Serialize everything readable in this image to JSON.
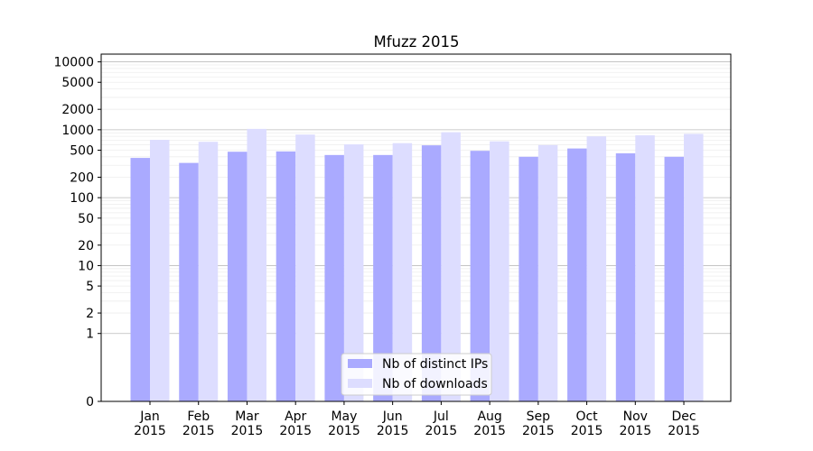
{
  "chart_data": {
    "type": "bar",
    "title": "Mfuzz 2015",
    "xlabel": "",
    "ylabel": "",
    "y_scale": "symlog",
    "ylim": [
      0,
      13000
    ],
    "categories": [
      [
        "Jan",
        "2015"
      ],
      [
        "Feb",
        "2015"
      ],
      [
        "Mar",
        "2015"
      ],
      [
        "Apr",
        "2015"
      ],
      [
        "May",
        "2015"
      ],
      [
        "Jun",
        "2015"
      ],
      [
        "Jul",
        "2015"
      ],
      [
        "Aug",
        "2015"
      ],
      [
        "Sep",
        "2015"
      ],
      [
        "Oct",
        "2015"
      ],
      [
        "Nov",
        "2015"
      ],
      [
        "Dec",
        "2015"
      ]
    ],
    "y_ticks": [
      0,
      1,
      2,
      5,
      10,
      20,
      50,
      100,
      200,
      500,
      1000,
      2000,
      5000,
      10000
    ],
    "grid": true,
    "legend_position": "lower-center",
    "series": [
      {
        "name": "Nb of distinct IPs",
        "color": "#aaaaff",
        "values": [
          385,
          325,
          475,
          480,
          425,
          425,
          590,
          490,
          400,
          530,
          450,
          400
        ]
      },
      {
        "name": "Nb of downloads",
        "color": "#ddddff",
        "values": [
          710,
          665,
          1030,
          850,
          610,
          635,
          920,
          675,
          595,
          800,
          830,
          870
        ]
      }
    ]
  }
}
